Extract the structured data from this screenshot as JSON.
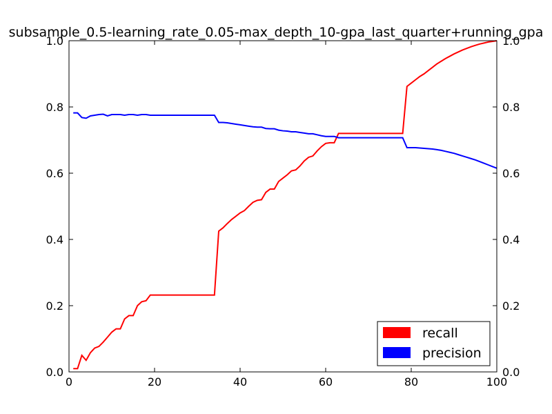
{
  "chart_data": {
    "type": "line",
    "title": "subsample_0.5-learning_rate_0.05-max_depth_10-gpa_last_quarter+running_gpa",
    "xlabel": "",
    "ylabel": "",
    "xlim": [
      0,
      100
    ],
    "ylim": [
      0,
      1.0
    ],
    "y2lim": [
      0,
      1.0
    ],
    "x_ticks": [
      "0",
      "20",
      "40",
      "60",
      "80",
      "100"
    ],
    "y_ticks": [
      "0.0",
      "0.2",
      "0.4",
      "0.6",
      "0.8",
      "1.0"
    ],
    "y2_ticks": [
      "0.0",
      "0.2",
      "0.4",
      "0.6",
      "0.8",
      "1.0"
    ],
    "grid": false,
    "legend_position": "lower-right",
    "series": [
      {
        "name": "recall",
        "color": "#ff0000",
        "axis": "left",
        "points": [
          [
            1,
            0.01
          ],
          [
            2,
            0.01
          ],
          [
            3,
            0.05
          ],
          [
            4,
            0.035
          ],
          [
            5,
            0.058
          ],
          [
            6,
            0.072
          ],
          [
            7,
            0.077
          ],
          [
            8,
            0.09
          ],
          [
            9,
            0.105
          ],
          [
            10,
            0.12
          ],
          [
            11,
            0.13
          ],
          [
            12,
            0.13
          ],
          [
            13,
            0.16
          ],
          [
            14,
            0.17
          ],
          [
            15,
            0.17
          ],
          [
            16,
            0.2
          ],
          [
            17,
            0.212
          ],
          [
            18,
            0.215
          ],
          [
            19,
            0.232
          ],
          [
            20,
            0.232
          ],
          [
            25,
            0.232
          ],
          [
            30,
            0.232
          ],
          [
            34,
            0.232
          ],
          [
            35,
            0.425
          ],
          [
            36,
            0.435
          ],
          [
            37,
            0.448
          ],
          [
            38,
            0.46
          ],
          [
            39,
            0.47
          ],
          [
            40,
            0.48
          ],
          [
            41,
            0.487
          ],
          [
            42,
            0.5
          ],
          [
            43,
            0.512
          ],
          [
            44,
            0.518
          ],
          [
            45,
            0.52
          ],
          [
            46,
            0.542
          ],
          [
            47,
            0.552
          ],
          [
            48,
            0.552
          ],
          [
            49,
            0.575
          ],
          [
            50,
            0.585
          ],
          [
            51,
            0.595
          ],
          [
            52,
            0.607
          ],
          [
            53,
            0.61
          ],
          [
            54,
            0.622
          ],
          [
            55,
            0.637
          ],
          [
            56,
            0.648
          ],
          [
            57,
            0.652
          ],
          [
            58,
            0.667
          ],
          [
            59,
            0.68
          ],
          [
            60,
            0.69
          ],
          [
            61,
            0.692
          ],
          [
            62,
            0.692
          ],
          [
            63,
            0.72
          ],
          [
            65,
            0.72
          ],
          [
            70,
            0.72
          ],
          [
            75,
            0.72
          ],
          [
            78,
            0.72
          ],
          [
            79,
            0.862
          ],
          [
            80,
            0.872
          ],
          [
            81,
            0.882
          ],
          [
            82,
            0.892
          ],
          [
            83,
            0.9
          ],
          [
            84,
            0.91
          ],
          [
            85,
            0.92
          ],
          [
            86,
            0.93
          ],
          [
            87,
            0.938
          ],
          [
            88,
            0.946
          ],
          [
            89,
            0.953
          ],
          [
            90,
            0.96
          ],
          [
            91,
            0.966
          ],
          [
            92,
            0.972
          ],
          [
            93,
            0.977
          ],
          [
            94,
            0.982
          ],
          [
            95,
            0.986
          ],
          [
            96,
            0.99
          ],
          [
            97,
            0.993
          ],
          [
            98,
            0.996
          ],
          [
            99,
            0.998
          ],
          [
            100,
            1.0
          ]
        ]
      },
      {
        "name": "precision",
        "color": "#0000ff",
        "axis": "left",
        "points": [
          [
            1,
            0.782
          ],
          [
            2,
            0.782
          ],
          [
            3,
            0.768
          ],
          [
            4,
            0.766
          ],
          [
            5,
            0.773
          ],
          [
            6,
            0.775
          ],
          [
            7,
            0.777
          ],
          [
            8,
            0.778
          ],
          [
            9,
            0.773
          ],
          [
            10,
            0.777
          ],
          [
            11,
            0.777
          ],
          [
            12,
            0.777
          ],
          [
            13,
            0.775
          ],
          [
            14,
            0.777
          ],
          [
            15,
            0.777
          ],
          [
            16,
            0.775
          ],
          [
            17,
            0.777
          ],
          [
            18,
            0.777
          ],
          [
            19,
            0.775
          ],
          [
            20,
            0.775
          ],
          [
            25,
            0.775
          ],
          [
            30,
            0.775
          ],
          [
            34,
            0.775
          ],
          [
            35,
            0.753
          ],
          [
            36,
            0.753
          ],
          [
            37,
            0.752
          ],
          [
            38,
            0.75
          ],
          [
            39,
            0.748
          ],
          [
            40,
            0.746
          ],
          [
            41,
            0.744
          ],
          [
            42,
            0.742
          ],
          [
            43,
            0.74
          ],
          [
            44,
            0.739
          ],
          [
            45,
            0.739
          ],
          [
            46,
            0.735
          ],
          [
            47,
            0.734
          ],
          [
            48,
            0.734
          ],
          [
            49,
            0.73
          ],
          [
            50,
            0.728
          ],
          [
            51,
            0.727
          ],
          [
            52,
            0.725
          ],
          [
            53,
            0.725
          ],
          [
            54,
            0.723
          ],
          [
            55,
            0.721
          ],
          [
            56,
            0.719
          ],
          [
            57,
            0.719
          ],
          [
            58,
            0.716
          ],
          [
            59,
            0.713
          ],
          [
            60,
            0.711
          ],
          [
            61,
            0.711
          ],
          [
            62,
            0.711
          ],
          [
            63,
            0.707
          ],
          [
            65,
            0.707
          ],
          [
            70,
            0.707
          ],
          [
            75,
            0.707
          ],
          [
            78,
            0.707
          ],
          [
            79,
            0.677
          ],
          [
            80,
            0.677
          ],
          [
            81,
            0.677
          ],
          [
            82,
            0.676
          ],
          [
            83,
            0.675
          ],
          [
            84,
            0.674
          ],
          [
            85,
            0.673
          ],
          [
            86,
            0.671
          ],
          [
            87,
            0.669
          ],
          [
            88,
            0.666
          ],
          [
            89,
            0.663
          ],
          [
            90,
            0.66
          ],
          [
            91,
            0.656
          ],
          [
            92,
            0.652
          ],
          [
            93,
            0.648
          ],
          [
            94,
            0.644
          ],
          [
            95,
            0.64
          ],
          [
            96,
            0.635
          ],
          [
            97,
            0.63
          ],
          [
            98,
            0.625
          ],
          [
            99,
            0.62
          ],
          [
            100,
            0.615
          ]
        ]
      }
    ]
  }
}
